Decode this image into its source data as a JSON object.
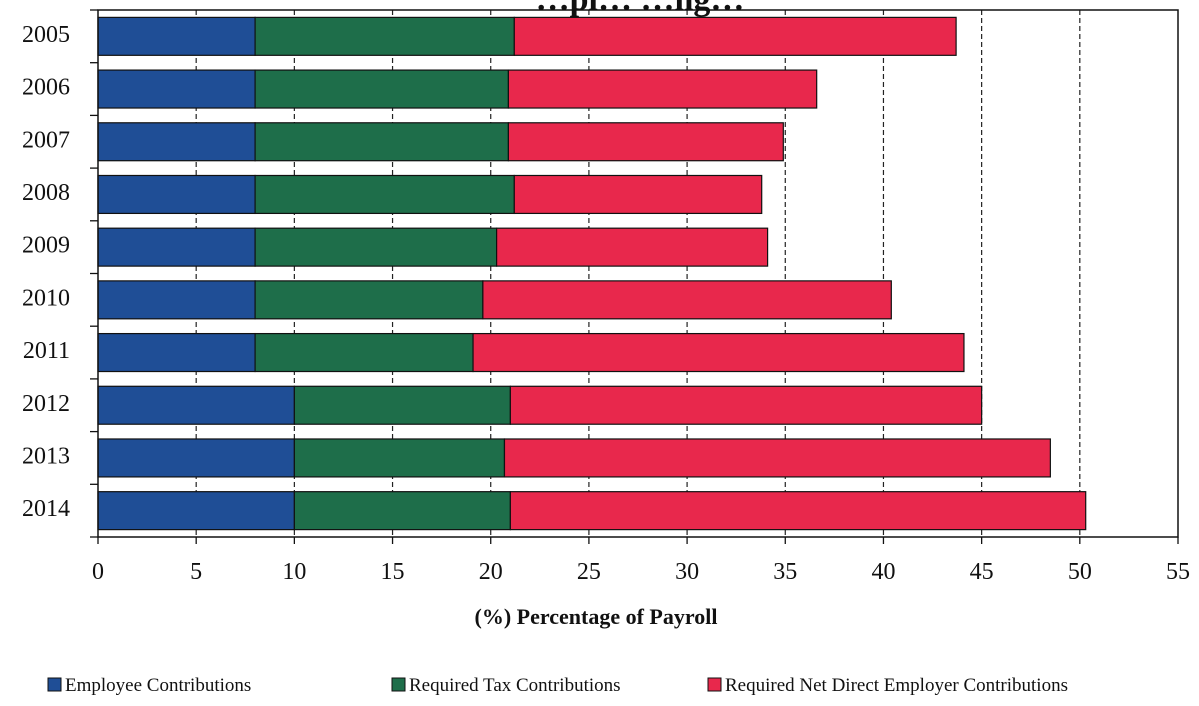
{
  "chart_data": {
    "type": "bar",
    "orientation": "horizontal",
    "stacked": true,
    "title": "…pl… …ng…",
    "xlabel": "(%) Percentage of Payroll",
    "ylabel": "",
    "xlim": [
      0,
      55
    ],
    "xticks": [
      0,
      5,
      10,
      15,
      20,
      25,
      30,
      35,
      40,
      45,
      50,
      55
    ],
    "gridlines": [
      5,
      10,
      15,
      20,
      25,
      30,
      35,
      40,
      45,
      50
    ],
    "grid": true,
    "legend_position": "bottom",
    "categories": [
      "2005",
      "2006",
      "2007",
      "2008",
      "2009",
      "2010",
      "2011",
      "2012",
      "2013",
      "2014"
    ],
    "series": [
      {
        "name": "Employee Contributions",
        "color": "#1f4e96",
        "values": [
          8.0,
          8.0,
          8.0,
          8.0,
          8.0,
          8.0,
          8.0,
          10.0,
          10.0,
          10.0
        ]
      },
      {
        "name": "Required Tax Contributions",
        "color": "#1e6e4a",
        "values": [
          13.2,
          12.9,
          12.9,
          13.2,
          12.3,
          11.6,
          11.1,
          11.0,
          10.7,
          11.0
        ]
      },
      {
        "name": "Required Net Direct Employer Contributions",
        "color": "#e8284c",
        "values": [
          22.5,
          15.7,
          14.0,
          12.6,
          13.8,
          20.8,
          25.0,
          24.0,
          27.8,
          29.3
        ]
      }
    ]
  }
}
